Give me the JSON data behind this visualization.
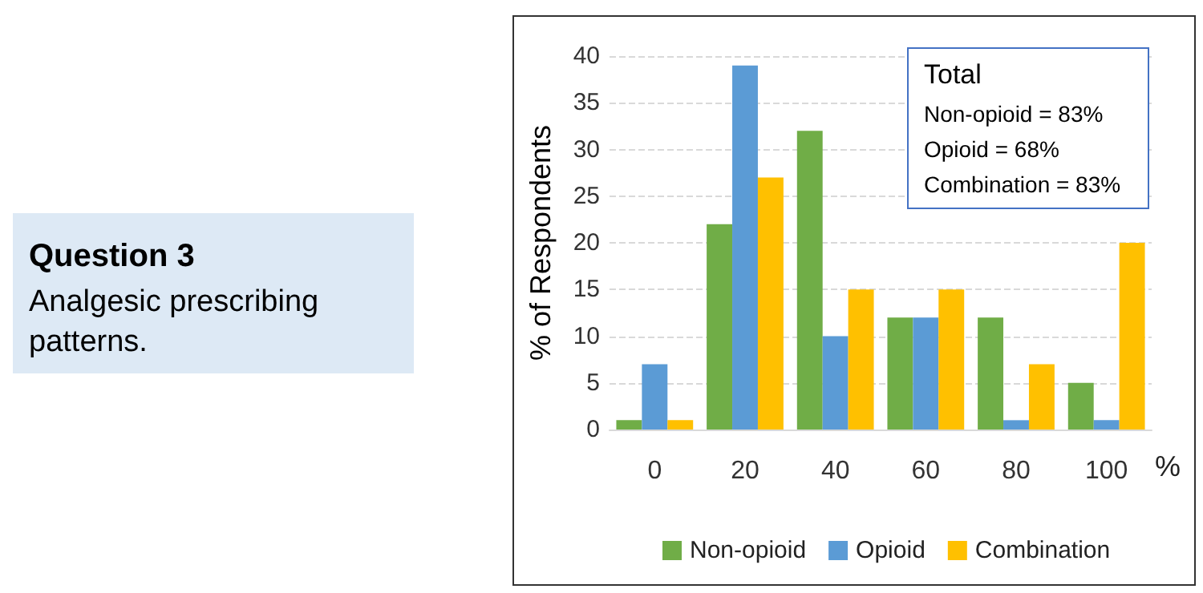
{
  "chart_data": {
    "type": "bar",
    "title": "Question 3",
    "subtitle": "Analgesic prescribing patterns.",
    "xlabel": "%",
    "ylabel": "% of Respondents",
    "categories": [
      "0",
      "20",
      "40",
      "60",
      "80",
      "100"
    ],
    "series": [
      {
        "name": "Non-opioid",
        "color": "#70ad47",
        "values": [
          1,
          22,
          32,
          12,
          12,
          5
        ]
      },
      {
        "name": "Opioid",
        "color": "#5b9bd5",
        "values": [
          7,
          39,
          10,
          12,
          1,
          1
        ]
      },
      {
        "name": "Combination",
        "color": "#ffc000",
        "values": [
          1,
          27,
          15,
          15,
          7,
          20
        ]
      }
    ],
    "ylim": [
      0,
      40
    ],
    "yticks": [
      0,
      5,
      10,
      15,
      20,
      25,
      30,
      35,
      40
    ],
    "grid": "y",
    "legend": "bottom",
    "annotations": [
      "Total",
      "Non-opioid = 83%",
      "Opioid = 68%",
      "Combination = 83%"
    ]
  }
}
